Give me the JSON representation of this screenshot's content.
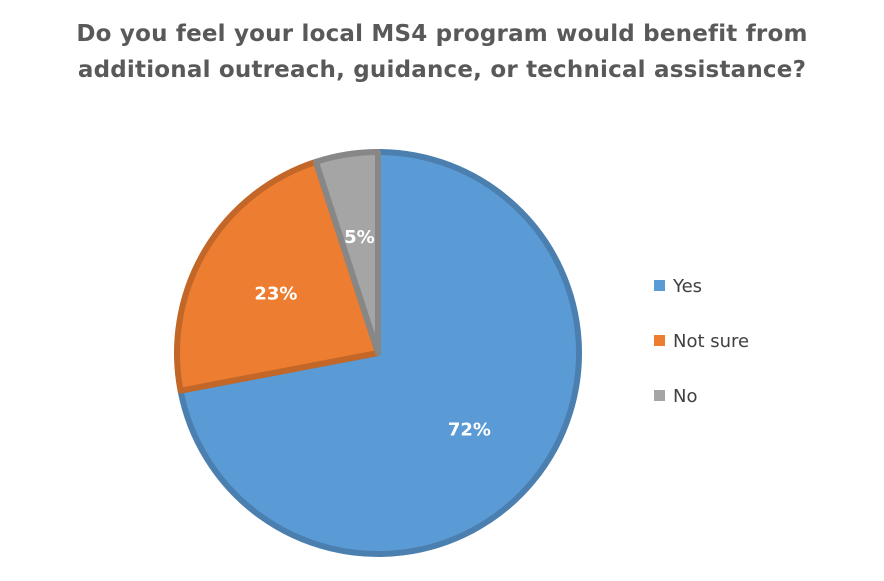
{
  "chart_data": {
    "type": "pie",
    "title": "Do you feel your local MS4 program would benefit from additional outreach, guidance, or technical assistance?",
    "categories": [
      "Yes",
      "Not sure",
      "No"
    ],
    "values": [
      72,
      23,
      5
    ],
    "data_labels": [
      "72%",
      "23%",
      "5%"
    ],
    "colors": [
      "#5B9BD5",
      "#ED7D31",
      "#A5A5A5"
    ],
    "start_angle_deg": 0,
    "direction": "clockwise",
    "legend_position": "right"
  }
}
